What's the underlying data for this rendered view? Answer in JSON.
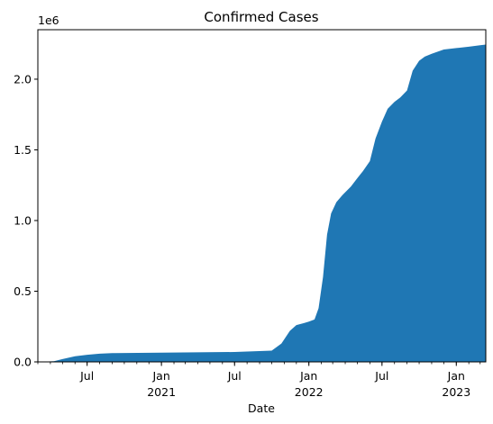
{
  "chart_data": {
    "type": "area",
    "title": "Confirmed Cases",
    "xlabel": "Date",
    "ylabel": "",
    "y_offset_label": "1e6",
    "xlim": [
      "2020-03-01",
      "2023-03-15"
    ],
    "ylim": [
      0,
      2350000
    ],
    "yticks": [
      {
        "value": 0,
        "label": "0.0"
      },
      {
        "value": 500000,
        "label": "0.5"
      },
      {
        "value": 1000000,
        "label": "1.0"
      },
      {
        "value": 1500000,
        "label": "1.5"
      },
      {
        "value": 2000000,
        "label": "2.0"
      }
    ],
    "xticks": [
      {
        "date": "2020-07-01",
        "label": "Jul",
        "sublabel": ""
      },
      {
        "date": "2021-01-01",
        "label": "Jan",
        "sublabel": "2021"
      },
      {
        "date": "2021-07-01",
        "label": "Jul",
        "sublabel": ""
      },
      {
        "date": "2022-01-01",
        "label": "Jan",
        "sublabel": "2022"
      },
      {
        "date": "2022-07-01",
        "label": "Jul",
        "sublabel": ""
      },
      {
        "date": "2023-01-01",
        "label": "Jan",
        "sublabel": "2023"
      }
    ],
    "grid": false,
    "fill_color": "#1f77b4",
    "series": [
      {
        "x": [
          "2020-03-01",
          "2020-04-10",
          "2020-05-01",
          "2020-06-01",
          "2020-07-01",
          "2020-08-01",
          "2020-09-01",
          "2021-01-01",
          "2021-07-01",
          "2021-10-01",
          "2021-10-25",
          "2021-11-15",
          "2021-12-01",
          "2021-12-20",
          "2022-01-01",
          "2022-01-15",
          "2022-01-25",
          "2022-02-05",
          "2022-02-15",
          "2022-02-25",
          "2022-03-10",
          "2022-03-25",
          "2022-04-15",
          "2022-05-01",
          "2022-05-15",
          "2022-06-01",
          "2022-06-15",
          "2022-07-01",
          "2022-07-15",
          "2022-08-01",
          "2022-08-15",
          "2022-09-01",
          "2022-09-15",
          "2022-10-01",
          "2022-10-15",
          "2022-11-01",
          "2022-12-01",
          "2023-01-01",
          "2023-02-01",
          "2023-03-01",
          "2023-03-15"
        ],
        "values": [
          0,
          5000,
          20000,
          40000,
          50000,
          58000,
          62000,
          65000,
          70000,
          80000,
          130000,
          220000,
          260000,
          275000,
          285000,
          300000,
          380000,
          600000,
          900000,
          1050000,
          1130000,
          1180000,
          1240000,
          1300000,
          1350000,
          1420000,
          1580000,
          1700000,
          1790000,
          1840000,
          1870000,
          1920000,
          2060000,
          2130000,
          2160000,
          2180000,
          2210000,
          2220000,
          2230000,
          2240000,
          2245000
        ]
      }
    ]
  }
}
